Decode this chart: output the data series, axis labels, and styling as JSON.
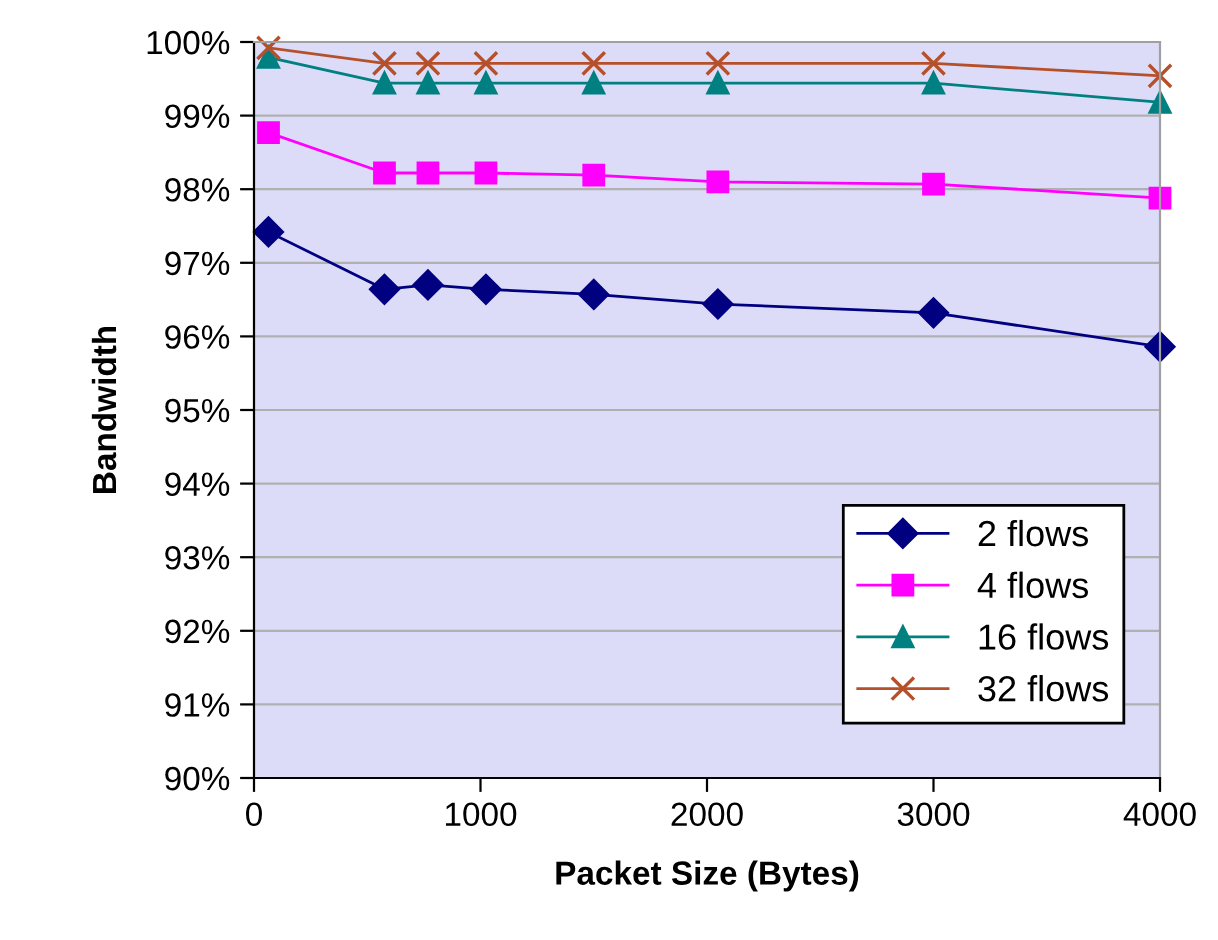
{
  "chart_data": {
    "type": "line",
    "xlabel": "Packet Size (Bytes)",
    "ylabel": "Bandwidth",
    "x": [
      64,
      576,
      768,
      1024,
      1500,
      2048,
      3000,
      4000
    ],
    "series": [
      {
        "name": "2 flows",
        "color": "#000080",
        "marker": "diamond",
        "values": [
          97.42,
          96.64,
          96.7,
          96.64,
          96.57,
          96.44,
          96.32,
          95.86
        ]
      },
      {
        "name": "4 flows",
        "color": "#ff00ff",
        "marker": "square",
        "values": [
          98.77,
          98.22,
          98.22,
          98.22,
          98.19,
          98.1,
          98.07,
          97.88
        ]
      },
      {
        "name": "16 flows",
        "color": "#008080",
        "marker": "triangle",
        "values": [
          99.79,
          99.44,
          99.44,
          99.44,
          99.44,
          99.44,
          99.44,
          99.18
        ]
      },
      {
        "name": "32 flows",
        "color": "#b5502a",
        "marker": "cross",
        "values": [
          99.92,
          99.71,
          99.71,
          99.71,
          99.71,
          99.71,
          99.71,
          99.54
        ]
      }
    ],
    "xlim": [
      0,
      4000
    ],
    "xticks": [
      0,
      1000,
      2000,
      3000,
      4000
    ],
    "ylim": [
      90,
      100
    ],
    "yticks": [
      {
        "value": 90,
        "label": "90%"
      },
      {
        "value": 91,
        "label": "91%"
      },
      {
        "value": 92,
        "label": "92%"
      },
      {
        "value": 93,
        "label": "93%"
      },
      {
        "value": 94,
        "label": "94%"
      },
      {
        "value": 95,
        "label": "95%"
      },
      {
        "value": 96,
        "label": "96%"
      },
      {
        "value": 97,
        "label": "97%"
      },
      {
        "value": 98,
        "label": "98%"
      },
      {
        "value": 99,
        "label": "99%"
      },
      {
        "value": 100,
        "label": "100%"
      }
    ],
    "grid": "y",
    "legend": "bottom right"
  }
}
